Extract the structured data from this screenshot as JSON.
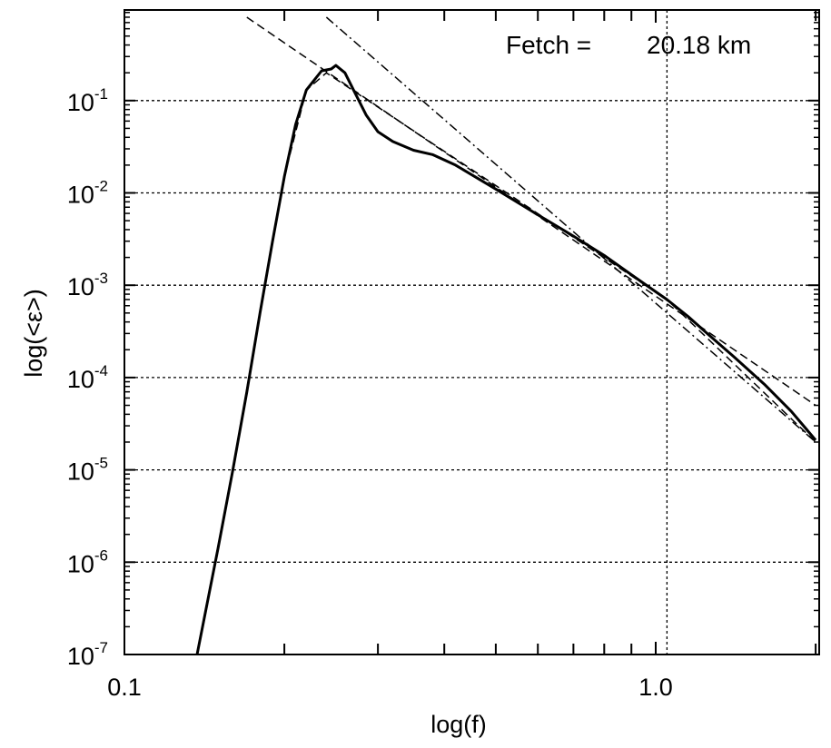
{
  "chart_data": {
    "type": "line",
    "title": "",
    "xlabel": "log(f)",
    "ylabel": "log(<ε>)",
    "x_scale": "log",
    "y_scale": "log",
    "xlim": [
      0.1,
      2.0
    ],
    "ylim": [
      1e-07,
      1.0
    ],
    "x_ticks": [
      {
        "value": 0.1,
        "label": "0.1"
      },
      {
        "value": 1.0,
        "label": "1.0"
      }
    ],
    "y_ticks": [
      {
        "value": 1e-07,
        "base": "10",
        "exp": "-7"
      },
      {
        "value": 1e-06,
        "base": "10",
        "exp": "-6"
      },
      {
        "value": 1e-05,
        "base": "10",
        "exp": "-5"
      },
      {
        "value": 0.0001,
        "base": "10",
        "exp": "-4"
      },
      {
        "value": 0.001,
        "base": "10",
        "exp": "-3"
      },
      {
        "value": 0.01,
        "base": "10",
        "exp": "-2"
      },
      {
        "value": 0.1,
        "base": "10",
        "exp": "-1"
      }
    ],
    "grid": {
      "horizontal": true,
      "vertical_at": [
        1.05
      ],
      "style": "dotted"
    },
    "annotation": {
      "label": "Fetch =",
      "value": "20.18 km"
    },
    "series": [
      {
        "style": "solid",
        "points": [
          [
            0.137,
            1e-07
          ],
          [
            0.15,
            1.4e-06
          ],
          [
            0.16,
            1e-05
          ],
          [
            0.17,
            7e-05
          ],
          [
            0.18,
            0.0005
          ],
          [
            0.19,
            0.003
          ],
          [
            0.2,
            0.015
          ],
          [
            0.21,
            0.055
          ],
          [
            0.22,
            0.13
          ],
          [
            0.235,
            0.21
          ],
          [
            0.245,
            0.22
          ],
          [
            0.25,
            0.24
          ],
          [
            0.26,
            0.2
          ],
          [
            0.27,
            0.13
          ],
          [
            0.285,
            0.07
          ],
          [
            0.3,
            0.046
          ],
          [
            0.32,
            0.036
          ],
          [
            0.35,
            0.029
          ],
          [
            0.38,
            0.026
          ],
          [
            0.42,
            0.02
          ],
          [
            0.5,
            0.011
          ],
          [
            0.6,
            0.0058
          ],
          [
            0.7,
            0.0034
          ],
          [
            0.8,
            0.0021
          ],
          [
            0.9,
            0.0013
          ],
          [
            1.0,
            0.00085
          ],
          [
            1.05,
            0.0007
          ],
          [
            1.15,
            0.00046
          ],
          [
            1.25,
            0.0003
          ],
          [
            1.4,
            0.00017
          ],
          [
            1.6,
            8.5e-05
          ],
          [
            1.8,
            4.3e-05
          ],
          [
            2.0,
            2.1e-05
          ]
        ]
      },
      {
        "style": "dashed",
        "points": [
          [
            0.17,
            0.8
          ],
          [
            2.0,
            5e-05
          ]
        ]
      },
      {
        "style": "dashed",
        "points": [
          [
            0.137,
            1e-07
          ],
          [
            0.16,
            1e-05
          ],
          [
            0.18,
            0.0005
          ],
          [
            0.2,
            0.015
          ],
          [
            0.22,
            0.13
          ],
          [
            0.24,
            0.2
          ],
          [
            1.05,
            0.0007
          ],
          [
            2.0,
            2e-05
          ]
        ]
      },
      {
        "style": "dash-dot",
        "points": [
          [
            0.24,
            0.8
          ],
          [
            2.0,
            2e-05
          ]
        ]
      }
    ]
  }
}
